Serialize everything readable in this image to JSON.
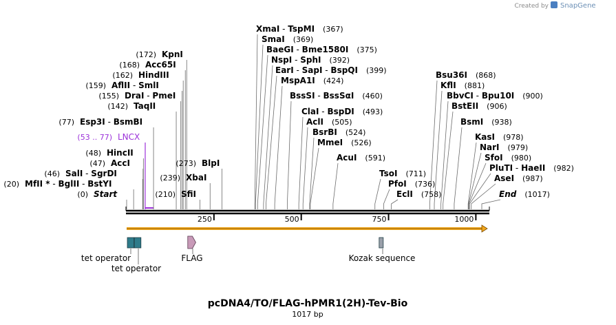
{
  "branding": {
    "created_by": "Created by",
    "app": "SnapGene"
  },
  "sequence": {
    "name": "pcDNA4/TO/FLAG-hPMR1(2H)-Tev-Bio",
    "length_label": "1017 bp",
    "length": 1017
  },
  "axis": {
    "ticks": [
      {
        "value": 250,
        "label": "250"
      },
      {
        "value": 500,
        "label": "500"
      },
      {
        "value": 750,
        "label": "750"
      },
      {
        "value": 1000,
        "label": "1000"
      }
    ]
  },
  "sites": [
    {
      "names": [
        "Start"
      ],
      "pos_label": "(0)",
      "pos": 0,
      "style": "italic"
    },
    {
      "names": [
        "MfII *",
        "BglII",
        "BstYI"
      ],
      "pos_label": "(20)",
      "pos": 20
    },
    {
      "names": [
        "SalI",
        "SgrDI"
      ],
      "pos_label": "(46)",
      "pos": 46
    },
    {
      "names": [
        "AccI"
      ],
      "pos_label": "(47)",
      "pos": 47
    },
    {
      "names": [
        "HincII"
      ],
      "pos_label": "(48)",
      "pos": 48
    },
    {
      "names": [
        "LNCX"
      ],
      "pos_label": "(53 .. 77)",
      "pos": 53,
      "end": 77,
      "style": "primer"
    },
    {
      "names": [
        "Esp3I",
        "BsmBI"
      ],
      "pos_label": "(77)",
      "pos": 77
    },
    {
      "names": [
        "TaqII"
      ],
      "pos_label": "(142)",
      "pos": 142
    },
    {
      "names": [
        "DraI",
        "PmeI"
      ],
      "pos_label": "(155)",
      "pos": 155
    },
    {
      "names": [
        "AflII",
        "SmlI"
      ],
      "pos_label": "(159)",
      "pos": 159
    },
    {
      "names": [
        "HindIII"
      ],
      "pos_label": "(162)",
      "pos": 162
    },
    {
      "names": [
        "Acc65I"
      ],
      "pos_label": "(168)",
      "pos": 168
    },
    {
      "names": [
        "KpnI"
      ],
      "pos_label": "(172)",
      "pos": 172
    },
    {
      "names": [
        "SfiI"
      ],
      "pos_label": "(210)",
      "pos": 210
    },
    {
      "names": [
        "XbaI"
      ],
      "pos_label": "(239)",
      "pos": 239
    },
    {
      "names": [
        "BlpI"
      ],
      "pos_label": "(273)",
      "pos": 273
    },
    {
      "names": [
        "XmaI",
        "TspMI"
      ],
      "pos_label": "(367)",
      "pos": 367
    },
    {
      "names": [
        "SmaI"
      ],
      "pos_label": "(369)",
      "pos": 369
    },
    {
      "names": [
        "BaeGI",
        "Bme1580I"
      ],
      "pos_label": "(375)",
      "pos": 375
    },
    {
      "names": [
        "NspI",
        "SphI"
      ],
      "pos_label": "(392)",
      "pos": 392
    },
    {
      "names": [
        "EarI",
        "SapI",
        "BspQI"
      ],
      "pos_label": "(399)",
      "pos": 399
    },
    {
      "names": [
        "MspA1I"
      ],
      "pos_label": "(424)",
      "pos": 424
    },
    {
      "names": [
        "BssSI",
        "BssSαI"
      ],
      "pos_label": "(460)",
      "pos": 460
    },
    {
      "names": [
        "ClaI",
        "BspDI"
      ],
      "pos_label": "(493)",
      "pos": 493
    },
    {
      "names": [
        "AclI"
      ],
      "pos_label": "(505)",
      "pos": 505
    },
    {
      "names": [
        "BsrBI"
      ],
      "pos_label": "(524)",
      "pos": 524
    },
    {
      "names": [
        "MmeI"
      ],
      "pos_label": "(526)",
      "pos": 526
    },
    {
      "names": [
        "AcuI"
      ],
      "pos_label": "(591)",
      "pos": 591
    },
    {
      "names": [
        "TsoI"
      ],
      "pos_label": "(711)",
      "pos": 711
    },
    {
      "names": [
        "PfoI"
      ],
      "pos_label": "(736)",
      "pos": 736
    },
    {
      "names": [
        "EclI"
      ],
      "pos_label": "(758)",
      "pos": 758
    },
    {
      "names": [
        "Bsu36I"
      ],
      "pos_label": "(868)",
      "pos": 868
    },
    {
      "names": [
        "KflI"
      ],
      "pos_label": "(881)",
      "pos": 881
    },
    {
      "names": [
        "BbvCI",
        "Bpu10I"
      ],
      "pos_label": "(900)",
      "pos": 900
    },
    {
      "names": [
        "BstEII"
      ],
      "pos_label": "(906)",
      "pos": 906
    },
    {
      "names": [
        "BsmI"
      ],
      "pos_label": "(938)",
      "pos": 938
    },
    {
      "names": [
        "KasI"
      ],
      "pos_label": "(978)",
      "pos": 978
    },
    {
      "names": [
        "NarI"
      ],
      "pos_label": "(979)",
      "pos": 979
    },
    {
      "names": [
        "SfoI"
      ],
      "pos_label": "(980)",
      "pos": 980
    },
    {
      "names": [
        "PluTI",
        "HaeII"
      ],
      "pos_label": "(982)",
      "pos": 982
    },
    {
      "names": [
        "AseI"
      ],
      "pos_label": "(987)",
      "pos": 987
    },
    {
      "names": [
        "End"
      ],
      "pos_label": "(1017)",
      "pos": 1017,
      "style": "italic"
    }
  ],
  "features": [
    {
      "name": "tet operator",
      "start": 2,
      "end": 21,
      "color": "#2e7b8a"
    },
    {
      "name": "tet operator",
      "start": 22,
      "end": 41,
      "color": "#2e7b8a"
    },
    {
      "name": "FLAG",
      "start": 175,
      "end": 198,
      "color": "#c89ab8"
    },
    {
      "name": "Kozak sequence",
      "start": 723,
      "end": 733,
      "color": "#9aa0aa"
    }
  ],
  "colors": {
    "backbone": "#000000",
    "orf": "#f2a81d",
    "primer": "#9b30d9"
  }
}
